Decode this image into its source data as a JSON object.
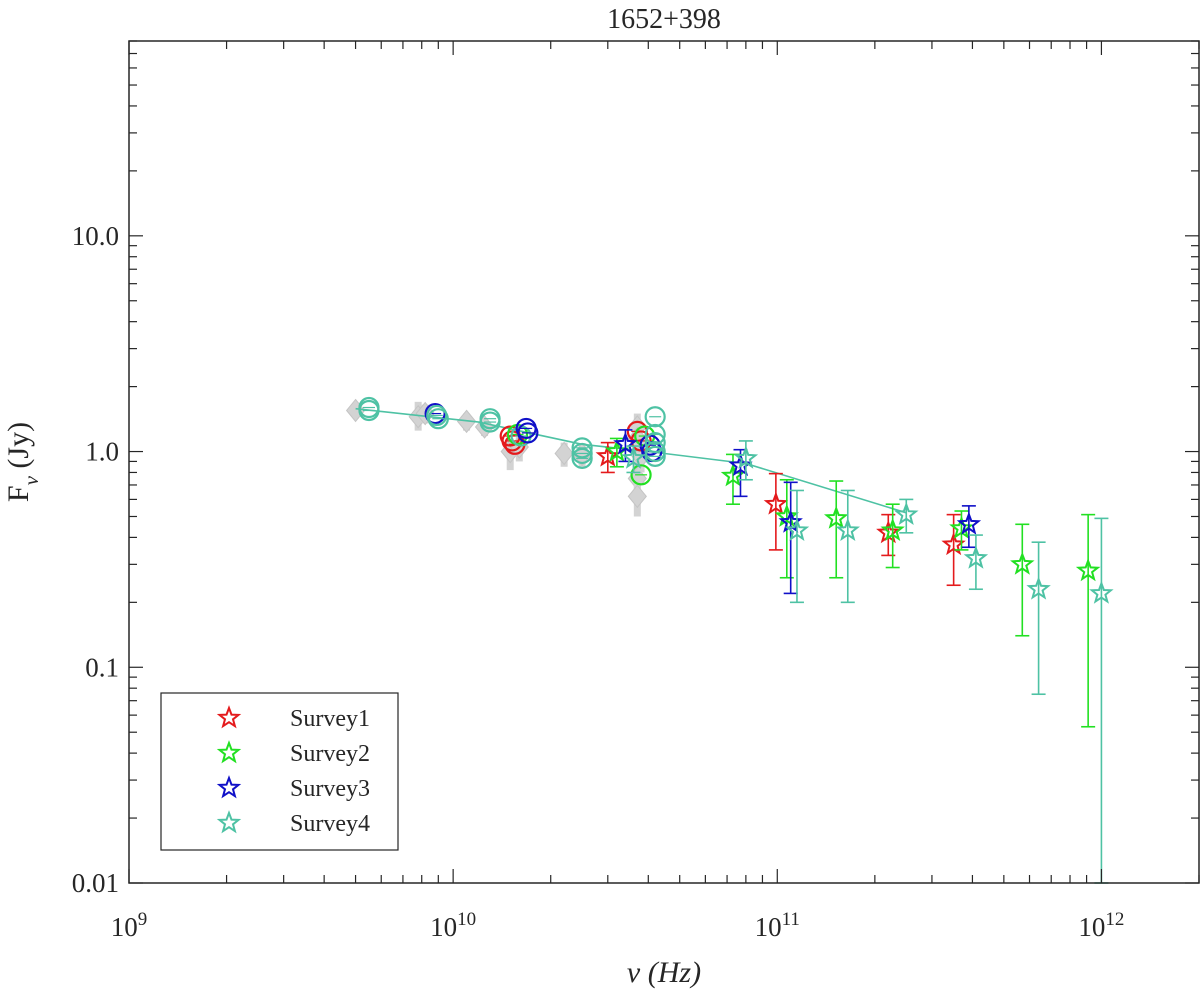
{
  "chart_data": {
    "type": "scatter",
    "title": "1652+398",
    "xlabel": "ν (Hz)",
    "ylabel_main": "F",
    "ylabel_sub": "ν",
    "ylabel_unit": "(Jy)",
    "xscale": "log",
    "yscale": "log",
    "xlim": [
      1000000000.0,
      2000000000000.0
    ],
    "ylim": [
      0.01,
      80
    ],
    "x_ticks": [
      {
        "value": 1000000000.0,
        "base": "10",
        "exp": "9"
      },
      {
        "value": 10000000000.0,
        "base": "10",
        "exp": "10"
      },
      {
        "value": 100000000000.0,
        "base": "10",
        "exp": "11"
      },
      {
        "value": 1000000000000.0,
        "base": "10",
        "exp": "12"
      }
    ],
    "y_ticks": [
      {
        "value": 0.01,
        "label": "0.01"
      },
      {
        "value": 0.1,
        "label": "0.1"
      },
      {
        "value": 1,
        "label": "1.0"
      },
      {
        "value": 10,
        "label": "10.0"
      }
    ],
    "legend_position": "bottom-left",
    "colors": {
      "survey1": "#e41a1c",
      "survey2": "#22e022",
      "survey3": "#1010c8",
      "survey4": "#4ec2a4",
      "gray": "#d3d3d3",
      "axis": "#262626"
    },
    "series": [
      {
        "name": "Survey1",
        "key": "survey1",
        "color": "#e41a1c",
        "points": [
          [
            30000000000.0,
            0.95,
            0.8,
            1.1
          ],
          [
            99000000000.0,
            0.57,
            0.35,
            0.79
          ],
          [
            220000000000.0,
            0.42,
            0.33,
            0.51
          ],
          [
            350000000000.0,
            0.37,
            0.24,
            0.51
          ]
        ]
      },
      {
        "name": "Survey2",
        "key": "survey2",
        "color": "#22e022",
        "points": [
          [
            32000000000.0,
            1.0,
            0.85,
            1.15
          ],
          [
            73000000000.0,
            0.77,
            0.57,
            0.97
          ],
          [
            107000000000.0,
            0.5,
            0.26,
            0.74
          ],
          [
            152000000000.0,
            0.49,
            0.26,
            0.73
          ],
          [
            227000000000.0,
            0.43,
            0.29,
            0.57
          ],
          [
            370000000000.0,
            0.44,
            0.35,
            0.53
          ],
          [
            570000000000.0,
            0.3,
            0.14,
            0.46
          ],
          [
            910000000000.0,
            0.28,
            0.053,
            0.51
          ]
        ]
      },
      {
        "name": "Survey3",
        "key": "survey3",
        "color": "#1010c8",
        "points": [
          [
            34000000000.0,
            1.08,
            0.9,
            1.26
          ],
          [
            77000000000.0,
            0.86,
            0.62,
            1.02
          ],
          [
            110000000000.0,
            0.47,
            0.22,
            0.72
          ],
          [
            390000000000.0,
            0.46,
            0.36,
            0.56
          ]
        ]
      },
      {
        "name": "Survey4",
        "key": "survey4",
        "color": "#4ec2a4",
        "points": [
          [
            36000000000.0,
            0.93,
            0.8,
            1.06
          ],
          [
            80000000000.0,
            0.93,
            0.74,
            1.12
          ],
          [
            115000000000.0,
            0.43,
            0.2,
            0.66
          ],
          [
            165000000000.0,
            0.43,
            0.2,
            0.66
          ],
          [
            250000000000.0,
            0.51,
            0.42,
            0.6
          ],
          [
            410000000000.0,
            0.32,
            0.23,
            0.41
          ],
          [
            640000000000.0,
            0.23,
            0.075,
            0.38
          ],
          [
            1000000000000.0,
            0.22,
            0.01,
            0.49
          ]
        ]
      }
    ],
    "circles": [
      {
        "key": "survey4",
        "x": 5500000000.0,
        "y": 1.6
      },
      {
        "key": "survey4",
        "x": 5500000000.0,
        "y": 1.55
      },
      {
        "key": "survey3",
        "x": 8800000000.0,
        "y": 1.5
      },
      {
        "key": "survey4",
        "x": 9000000000.0,
        "y": 1.42
      },
      {
        "key": "survey4",
        "x": 8900000000.0,
        "y": 1.47
      },
      {
        "key": "survey4",
        "x": 13000000000.0,
        "y": 1.42
      },
      {
        "key": "survey4",
        "x": 13000000000.0,
        "y": 1.37
      },
      {
        "key": "survey1",
        "x": 15000000000.0,
        "y": 1.18
      },
      {
        "key": "survey1",
        "x": 15200000000.0,
        "y": 1.12
      },
      {
        "key": "survey1",
        "x": 15500000000.0,
        "y": 1.08
      },
      {
        "key": "survey2",
        "x": 15800000000.0,
        "y": 1.2
      },
      {
        "key": "survey4",
        "x": 16200000000.0,
        "y": 1.18
      },
      {
        "key": "survey3",
        "x": 16800000000.0,
        "y": 1.28
      },
      {
        "key": "survey3",
        "x": 17000000000.0,
        "y": 1.22
      },
      {
        "key": "survey4",
        "x": 25000000000.0,
        "y": 1.04
      },
      {
        "key": "survey4",
        "x": 25000000000.0,
        "y": 0.98
      },
      {
        "key": "survey4",
        "x": 25000000000.0,
        "y": 0.93
      },
      {
        "key": "survey1",
        "x": 37000000000.0,
        "y": 1.24
      },
      {
        "key": "survey1",
        "x": 38000000000.0,
        "y": 1.12
      },
      {
        "key": "survey2",
        "x": 38000000000.0,
        "y": 0.78
      },
      {
        "key": "survey2",
        "x": 39000000000.0,
        "y": 1.18
      },
      {
        "key": "survey3",
        "x": 40500000000.0,
        "y": 1.07
      },
      {
        "key": "survey3",
        "x": 41000000000.0,
        "y": 1.0
      },
      {
        "key": "survey4",
        "x": 42000000000.0,
        "y": 1.45
      },
      {
        "key": "survey4",
        "x": 42000000000.0,
        "y": 1.2
      },
      {
        "key": "survey4",
        "x": 42000000000.0,
        "y": 1.1
      },
      {
        "key": "survey4",
        "x": 42000000000.0,
        "y": 1.0
      },
      {
        "key": "survey4",
        "x": 42000000000.0,
        "y": 0.95
      }
    ],
    "gray_points": [
      [
        5000000000.0,
        1.55,
        1.45,
        1.65
      ],
      [
        7800000000.0,
        1.45,
        1.25,
        1.7
      ],
      [
        8200000000.0,
        1.5,
        1.35,
        1.65
      ],
      [
        11000000000.0,
        1.38,
        1.25,
        1.5
      ],
      [
        12500000000.0,
        1.3,
        1.18,
        1.42
      ],
      [
        15000000000.0,
        1.0,
        0.82,
        1.15
      ],
      [
        16000000000.0,
        1.05,
        0.9,
        1.2
      ],
      [
        22000000000.0,
        0.98,
        0.85,
        1.1
      ],
      [
        25000000000.0,
        0.97,
        0.85,
        1.08
      ],
      [
        37000000000.0,
        1.3,
        1.1,
        1.5
      ],
      [
        37000000000.0,
        1.15,
        0.95,
        1.35
      ],
      [
        37000000000.0,
        0.75,
        0.6,
        0.9
      ],
      [
        37000000000.0,
        0.62,
        0.5,
        0.78
      ],
      [
        38000000000.0,
        0.95,
        0.8,
        1.1
      ]
    ],
    "fit_line": [
      [
        5000000000.0,
        1.58
      ],
      [
        12000000000.0,
        1.37
      ],
      [
        25000000000.0,
        1.08
      ],
      [
        40000000000.0,
        1.0
      ],
      [
        80000000000.0,
        0.88
      ],
      [
        250000000000.0,
        0.52
      ]
    ]
  }
}
